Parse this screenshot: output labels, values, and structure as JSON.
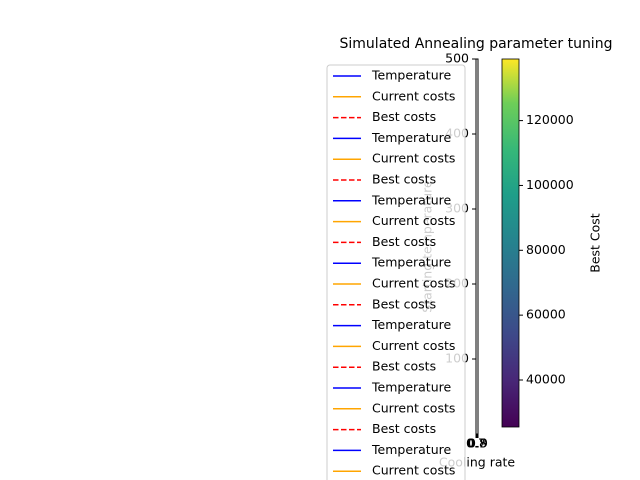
{
  "chart_data": {
    "type": "line",
    "title": "Simulated Annealing parameter tuning",
    "x_label": "Cooling rate",
    "y_label": "Starting temperature",
    "xlim": [
      0.7,
      0.9
    ],
    "xticks": [
      0.7,
      0.8,
      0.9
    ],
    "ylim": [
      0,
      500
    ],
    "yticks": [
      100,
      200,
      300,
      400,
      500
    ],
    "legend": "upper left",
    "series": [
      {
        "name": "Temperature",
        "color": "#0000ff",
        "dash": false
      },
      {
        "name": "Current costs",
        "color": "#ffa500",
        "dash": false
      },
      {
        "name": "Best costs",
        "color": "#ff0000",
        "dash": true
      },
      {
        "name": "Temperature",
        "color": "#0000ff",
        "dash": false
      },
      {
        "name": "Current costs",
        "color": "#ffa500",
        "dash": false
      },
      {
        "name": "Best costs",
        "color": "#ff0000",
        "dash": true
      },
      {
        "name": "Temperature",
        "color": "#0000ff",
        "dash": false
      },
      {
        "name": "Current costs",
        "color": "#ffa500",
        "dash": false
      },
      {
        "name": "Best costs",
        "color": "#ff0000",
        "dash": true
      },
      {
        "name": "Temperature",
        "color": "#0000ff",
        "dash": false
      },
      {
        "name": "Current costs",
        "color": "#ffa500",
        "dash": false
      },
      {
        "name": "Best costs",
        "color": "#ff0000",
        "dash": true
      },
      {
        "name": "Temperature",
        "color": "#0000ff",
        "dash": false
      },
      {
        "name": "Current costs",
        "color": "#ffa500",
        "dash": false
      },
      {
        "name": "Best costs",
        "color": "#ff0000",
        "dash": true
      },
      {
        "name": "Temperature",
        "color": "#0000ff",
        "dash": false
      },
      {
        "name": "Current costs",
        "color": "#ffa500",
        "dash": false
      },
      {
        "name": "Best costs",
        "color": "#ff0000",
        "dash": true
      },
      {
        "name": "Temperature",
        "color": "#0000ff",
        "dash": false
      },
      {
        "name": "Current costs",
        "color": "#ffa500",
        "dash": false
      }
    ],
    "colorbar": {
      "label": "Best Cost",
      "colormap": "viridis",
      "lim": [
        25500,
        139000
      ],
      "ticks": [
        40000,
        60000,
        80000,
        100000,
        120000
      ]
    }
  }
}
